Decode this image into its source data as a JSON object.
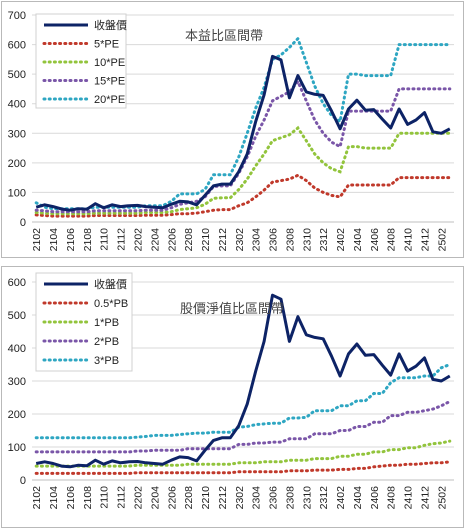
{
  "chart_data": [
    {
      "type": "line",
      "title": "本益比區間帶",
      "xlabel": "",
      "ylabel": "",
      "ylim": [
        0,
        700
      ],
      "yticks": [
        0,
        100,
        200,
        300,
        400,
        500,
        600,
        700
      ],
      "categories": [
        "2102",
        "2103",
        "2104",
        "2105",
        "2106",
        "2107",
        "2108",
        "2109",
        "2110",
        "2111",
        "2112",
        "2201",
        "2202",
        "2203",
        "2204",
        "2205",
        "2206",
        "2207",
        "2208",
        "2209",
        "2210",
        "2211",
        "2212",
        "2301",
        "2302",
        "2303",
        "2304",
        "2305",
        "2306",
        "2307",
        "2308",
        "2309",
        "2310",
        "2311",
        "2312",
        "2401",
        "2402",
        "2403",
        "2404",
        "2405",
        "2406",
        "2407",
        "2408",
        "2409",
        "2410",
        "2411",
        "2412",
        "2501",
        "2502",
        "2503"
      ],
      "x_tick_labels": [
        "2102",
        "2104",
        "2106",
        "2108",
        "2110",
        "2112",
        "2202",
        "2204",
        "2206",
        "2208",
        "2210",
        "2212",
        "2302",
        "2304",
        "2306",
        "2308",
        "2310",
        "2312",
        "2402",
        "2404",
        "2406",
        "2408",
        "2410",
        "2412",
        "2502"
      ],
      "grid": true,
      "legend_position": "top-left",
      "series": [
        {
          "name": "收盤價",
          "color": "#0d2366",
          "style": "solid",
          "values": [
            50,
            58,
            52,
            44,
            40,
            45,
            43,
            62,
            48,
            58,
            52,
            55,
            56,
            52,
            50,
            48,
            60,
            70,
            68,
            58,
            90,
            122,
            128,
            128,
            170,
            230,
            340,
            430,
            560,
            548,
            420,
            495,
            440,
            432,
            428,
            375,
            315,
            382,
            412,
            378,
            380,
            348,
            318,
            382,
            330,
            345,
            370,
            305,
            300,
            315
          ]
        },
        {
          "name": "5*PE",
          "color": "#c0392b",
          "style": "dotted",
          "values": [
            24,
            22,
            20,
            20,
            20,
            20,
            20,
            22,
            22,
            22,
            22,
            22,
            22,
            23,
            23,
            23,
            25,
            28,
            28,
            30,
            35,
            40,
            42,
            42,
            55,
            65,
            85,
            108,
            135,
            140,
            145,
            158,
            140,
            115,
            100,
            90,
            85,
            125,
            125,
            125,
            125,
            125,
            125,
            150,
            150,
            150,
            150,
            150,
            150,
            150
          ]
        },
        {
          "name": "10*PE",
          "color": "#92c43c",
          "style": "dotted",
          "values": [
            32,
            30,
            28,
            28,
            28,
            28,
            28,
            30,
            30,
            30,
            30,
            30,
            30,
            32,
            32,
            32,
            35,
            42,
            45,
            48,
            60,
            80,
            82,
            82,
            110,
            145,
            190,
            230,
            275,
            285,
            295,
            318,
            275,
            230,
            200,
            180,
            170,
            255,
            255,
            250,
            250,
            250,
            250,
            300,
            300,
            300,
            300,
            300,
            300,
            300
          ]
        },
        {
          "name": "15*PE",
          "color": "#7a56a8",
          "style": "dotted",
          "values": [
            40,
            38,
            35,
            35,
            35,
            35,
            35,
            38,
            38,
            38,
            38,
            38,
            38,
            40,
            40,
            40,
            48,
            60,
            65,
            70,
            85,
            120,
            122,
            122,
            165,
            220,
            290,
            345,
            410,
            425,
            440,
            475,
            410,
            345,
            300,
            270,
            255,
            375,
            375,
            375,
            375,
            375,
            375,
            450,
            450,
            450,
            450,
            450,
            450,
            450
          ]
        },
        {
          "name": "20*PE",
          "color": "#2ea6c2",
          "style": "dotted",
          "values": [
            65,
            50,
            45,
            45,
            45,
            45,
            45,
            50,
            50,
            50,
            50,
            50,
            50,
            55,
            55,
            55,
            70,
            95,
            95,
            95,
            110,
            160,
            160,
            160,
            220,
            300,
            385,
            455,
            550,
            565,
            590,
            620,
            540,
            460,
            400,
            360,
            340,
            500,
            500,
            495,
            495,
            495,
            495,
            600,
            600,
            600,
            600,
            600,
            600,
            600
          ]
        }
      ]
    },
    {
      "type": "line",
      "title": "股價淨值比區間帶",
      "xlabel": "",
      "ylabel": "",
      "ylim": [
        0,
        600
      ],
      "yticks": [
        0,
        100,
        200,
        300,
        400,
        500,
        600
      ],
      "categories": [
        "2102",
        "2103",
        "2104",
        "2105",
        "2106",
        "2107",
        "2108",
        "2109",
        "2110",
        "2111",
        "2112",
        "2201",
        "2202",
        "2203",
        "2204",
        "2205",
        "2206",
        "2207",
        "2208",
        "2209",
        "2210",
        "2211",
        "2212",
        "2301",
        "2302",
        "2303",
        "2304",
        "2305",
        "2306",
        "2307",
        "2308",
        "2309",
        "2310",
        "2311",
        "2312",
        "2401",
        "2402",
        "2403",
        "2404",
        "2405",
        "2406",
        "2407",
        "2408",
        "2409",
        "2410",
        "2411",
        "2412",
        "2501",
        "2502",
        "2503"
      ],
      "x_tick_labels": [
        "2102",
        "2104",
        "2106",
        "2108",
        "2110",
        "2112",
        "2202",
        "2204",
        "2206",
        "2208",
        "2210",
        "2212",
        "2302",
        "2304",
        "2306",
        "2308",
        "2310",
        "2312",
        "2402",
        "2404",
        "2406",
        "2408",
        "2410",
        "2412",
        "2502"
      ],
      "grid": true,
      "legend_position": "top-left",
      "series": [
        {
          "name": "收盤價",
          "color": "#0d2366",
          "style": "solid",
          "values": [
            50,
            55,
            50,
            42,
            40,
            45,
            43,
            60,
            48,
            58,
            52,
            55,
            56,
            52,
            50,
            48,
            60,
            70,
            68,
            58,
            90,
            120,
            128,
            128,
            165,
            230,
            330,
            420,
            560,
            548,
            420,
            495,
            440,
            432,
            428,
            375,
            315,
            382,
            412,
            378,
            380,
            348,
            318,
            382,
            330,
            345,
            370,
            305,
            300,
            315
          ]
        },
        {
          "name": "0.5*PB",
          "color": "#c0392b",
          "style": "dotted",
          "values": [
            20,
            20,
            20,
            20,
            20,
            20,
            20,
            20,
            20,
            20,
            20,
            20,
            22,
            22,
            22,
            22,
            22,
            22,
            22,
            22,
            22,
            22,
            22,
            22,
            25,
            25,
            25,
            25,
            25,
            25,
            28,
            28,
            28,
            30,
            30,
            30,
            32,
            32,
            35,
            35,
            40,
            42,
            45,
            45,
            48,
            48,
            50,
            52,
            52,
            55
          ]
        },
        {
          "name": "1*PB",
          "color": "#92c43c",
          "style": "dotted",
          "values": [
            42,
            42,
            42,
            42,
            42,
            42,
            42,
            42,
            42,
            42,
            42,
            42,
            45,
            45,
            45,
            45,
            45,
            45,
            48,
            48,
            48,
            48,
            48,
            48,
            52,
            52,
            52,
            55,
            55,
            55,
            60,
            60,
            60,
            65,
            65,
            65,
            72,
            72,
            78,
            78,
            85,
            85,
            92,
            92,
            98,
            98,
            105,
            110,
            112,
            118
          ]
        },
        {
          "name": "2*PB",
          "color": "#7a56a8",
          "style": "dotted",
          "values": [
            85,
            85,
            85,
            85,
            85,
            85,
            85,
            85,
            85,
            85,
            85,
            85,
            88,
            88,
            90,
            90,
            90,
            90,
            95,
            95,
            95,
            95,
            95,
            95,
            108,
            108,
            112,
            112,
            115,
            115,
            125,
            125,
            125,
            140,
            140,
            140,
            150,
            150,
            162,
            162,
            175,
            175,
            195,
            195,
            205,
            205,
            210,
            215,
            225,
            238
          ]
        },
        {
          "name": "3*PB",
          "color": "#2ea6c2",
          "style": "dotted",
          "values": [
            128,
            128,
            128,
            128,
            128,
            128,
            128,
            128,
            128,
            128,
            128,
            128,
            130,
            132,
            135,
            135,
            135,
            138,
            140,
            142,
            142,
            145,
            145,
            145,
            160,
            162,
            168,
            170,
            172,
            172,
            188,
            188,
            190,
            210,
            210,
            210,
            225,
            225,
            240,
            240,
            262,
            262,
            295,
            310,
            310,
            310,
            315,
            315,
            340,
            350
          ]
        }
      ]
    }
  ]
}
